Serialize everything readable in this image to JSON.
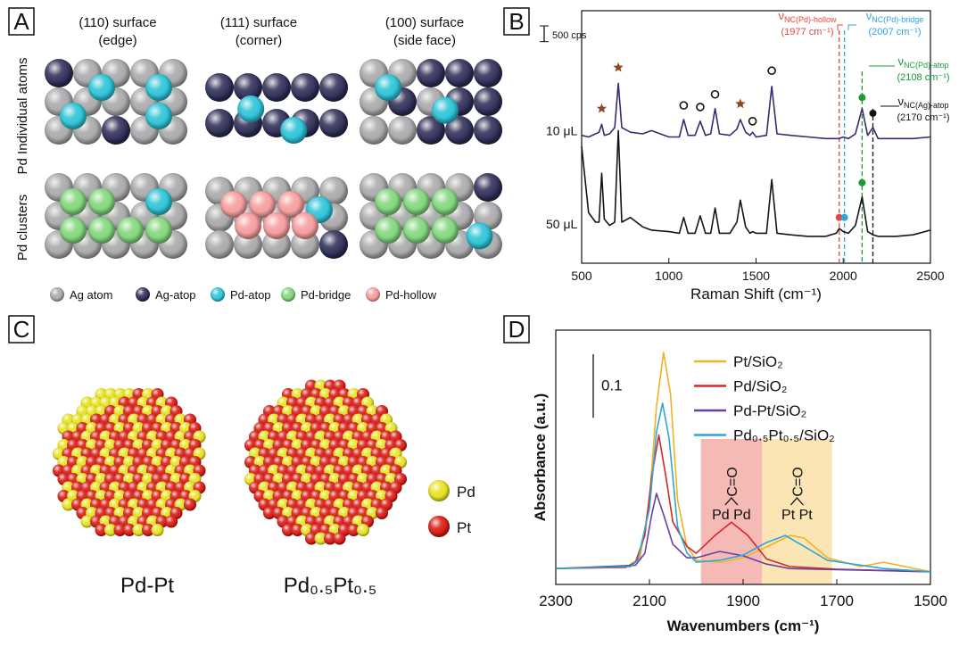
{
  "panel_a": {
    "letter": "A",
    "columns": [
      {
        "line1": "(110) surface",
        "line2": "(edge)"
      },
      {
        "line1": "(111) surface",
        "line2": "(corner)"
      },
      {
        "line1": "(100) surface",
        "line2": "(side face)"
      }
    ],
    "rows": [
      "Pd Individual atoms",
      "Pd clusters"
    ],
    "legend": [
      {
        "label": "Ag atom",
        "color": "#a7a7a9"
      },
      {
        "label": "Ag-atop",
        "color": "#2b2b55"
      },
      {
        "label": "Pd-atop",
        "color": "#27c2d6"
      },
      {
        "label": "Pd-bridge",
        "color": "#7fd67a"
      },
      {
        "label": "Pd-hollow",
        "color": "#f59a9a"
      }
    ]
  },
  "panel_c": {
    "letter": "C",
    "clusters": [
      "Pd-Pt",
      "Pd₀.₅Pt₀.₅"
    ],
    "legend": [
      {
        "label": "Pd",
        "color": "#e6e21a"
      },
      {
        "label": "Pt",
        "color": "#d8160f"
      }
    ]
  },
  "chart_data": [
    {
      "type": "line",
      "letter": "B",
      "xlabel": "Raman Shift (cm⁻¹)",
      "xlim": [
        500,
        2500
      ],
      "xticks": [
        500,
        1000,
        1500,
        2000,
        2500
      ],
      "ylim": [
        0,
        8000
      ],
      "scale_bar": {
        "value": 500,
        "label": "500 cps"
      },
      "x": [
        500,
        540,
        580,
        600,
        615,
        630,
        660,
        690,
        710,
        730,
        780,
        850,
        900,
        1000,
        1060,
        1085,
        1110,
        1150,
        1180,
        1210,
        1240,
        1265,
        1290,
        1350,
        1390,
        1410,
        1440,
        1465,
        1480,
        1500,
        1560,
        1590,
        1620,
        1700,
        1800,
        1900,
        1960,
        1977,
        2000,
        2030,
        2070,
        2108,
        2140,
        2170,
        2200,
        2300,
        2400,
        2500
      ],
      "series": [
        {
          "name": "10 μL",
          "color": "#3d2a6e",
          "values": [
            4050,
            4000,
            4100,
            4150,
            4400,
            4050,
            4100,
            4300,
            5700,
            4300,
            4150,
            4100,
            4200,
            4000,
            4000,
            4550,
            4050,
            4050,
            4500,
            4050,
            4100,
            4900,
            4100,
            4050,
            4250,
            4550,
            4150,
            4050,
            4150,
            4000,
            4050,
            5600,
            4100,
            4050,
            4000,
            3950,
            3950,
            3950,
            4000,
            3950,
            4100,
            4900,
            4050,
            4300,
            3950,
            3950,
            3950,
            4000
          ]
        },
        {
          "name": "50 μL",
          "color": "#151515",
          "values": [
            3700,
            1600,
            1300,
            1300,
            2850,
            1400,
            1200,
            1300,
            4200,
            1300,
            1450,
            1150,
            1050,
            1000,
            950,
            1450,
            950,
            950,
            1500,
            950,
            950,
            1750,
            950,
            950,
            1300,
            2000,
            1150,
            950,
            1000,
            950,
            950,
            2650,
            950,
            900,
            850,
            850,
            950,
            1100,
            1000,
            950,
            1200,
            2100,
            1000,
            900,
            850,
            850,
            900,
            1050
          ]
        }
      ],
      "markers": [
        {
          "x": 615,
          "y": 4900,
          "shape": "star",
          "color": "#8b4a1e"
        },
        {
          "x": 710,
          "y": 6200,
          "shape": "star",
          "color": "#8b4a1e"
        },
        {
          "x": 1410,
          "y": 5050,
          "shape": "star",
          "color": "#8b4a1e"
        },
        {
          "x": 1085,
          "y": 5000,
          "shape": "ring",
          "color": "#111111"
        },
        {
          "x": 1180,
          "y": 4950,
          "shape": "ring",
          "color": "#111111"
        },
        {
          "x": 1265,
          "y": 5350,
          "shape": "ring",
          "color": "#111111"
        },
        {
          "x": 1480,
          "y": 4500,
          "shape": "ring",
          "color": "#111111"
        },
        {
          "x": 1590,
          "y": 6100,
          "shape": "ring",
          "color": "#111111"
        },
        {
          "x": 1977,
          "y": 1450,
          "shape": "dot",
          "color": "#e8453c"
        },
        {
          "x": 2007,
          "y": 1450,
          "shape": "dot",
          "color": "#2ea6d8"
        },
        {
          "x": 2108,
          "y": 2550,
          "shape": "dot",
          "color": "#1a9a3a"
        },
        {
          "x": 2108,
          "y": 5250,
          "shape": "dot",
          "color": "#1a9a3a"
        },
        {
          "x": 2170,
          "y": 4750,
          "shape": "dot",
          "color": "#111111"
        }
      ],
      "peaks": [
        {
          "x": 1977,
          "symbol": "ν",
          "sub": "NC(Pd)-hollow",
          "label": "(1977 cm⁻¹)",
          "color": "#e8453c"
        },
        {
          "x": 2007,
          "symbol": "ν",
          "sub": "NC(Pd)-bridge",
          "label": "(2007 cm⁻¹)",
          "color": "#2ea6d8"
        },
        {
          "x": 2108,
          "symbol": "ν",
          "sub": "NC(Pd)-atop",
          "label": "(2108 cm⁻¹)",
          "color": "#1a9a3a"
        },
        {
          "x": 2170,
          "symbol": "ν",
          "sub": "NC(Ag)-atop",
          "label": "(2170 cm⁻¹)",
          "color": "#111111"
        }
      ]
    },
    {
      "type": "line",
      "letter": "D",
      "xlabel": "Wavenumbers (cm⁻¹)",
      "ylabel": "Absorbance (a.u.)",
      "xlim": [
        2300,
        1500
      ],
      "xticks": [
        2300,
        2100,
        1900,
        1700,
        1500
      ],
      "ylim": [
        0,
        0.4
      ],
      "scale_bar": {
        "value": 0.1,
        "label": "0.1"
      },
      "series": [
        {
          "name": "Pt/SiO₂",
          "color": "#f0b323",
          "x": [
            2300,
            2150,
            2120,
            2100,
            2085,
            2070,
            2055,
            2040,
            2020,
            2000,
            1950,
            1900,
            1850,
            1800,
            1770,
            1720,
            1650,
            1600,
            1500
          ],
          "values": [
            0.025,
            0.027,
            0.042,
            0.133,
            0.28,
            0.365,
            0.3,
            0.133,
            0.06,
            0.038,
            0.035,
            0.042,
            0.059,
            0.077,
            0.073,
            0.042,
            0.028,
            0.035,
            0.02
          ]
        },
        {
          "name": "Pd/SiO₂",
          "color": "#d62728",
          "x": [
            2300,
            2150,
            2130,
            2110,
            2095,
            2080,
            2065,
            2050,
            2020,
            2000,
            1960,
            1925,
            1890,
            1850,
            1800,
            1700,
            1500
          ],
          "values": [
            0.025,
            0.027,
            0.035,
            0.077,
            0.17,
            0.235,
            0.17,
            0.098,
            0.06,
            0.049,
            0.077,
            0.098,
            0.077,
            0.04,
            0.028,
            0.024,
            0.02
          ]
        },
        {
          "name": "Pd-Pt/SiO₂",
          "color": "#6b3fa0",
          "x": [
            2300,
            2130,
            2110,
            2095,
            2085,
            2070,
            2050,
            2020,
            2000,
            1950,
            1900,
            1850,
            1800,
            1500
          ],
          "values": [
            0.025,
            0.03,
            0.049,
            0.11,
            0.143,
            0.11,
            0.063,
            0.042,
            0.042,
            0.052,
            0.045,
            0.032,
            0.025,
            0.02
          ]
        },
        {
          "name": "Pd₀.₅Pt₀.₅/SiO₂",
          "color": "#2ea6d8",
          "x": [
            2300,
            2140,
            2125,
            2100,
            2085,
            2072,
            2058,
            2040,
            2020,
            2000,
            1950,
            1900,
            1850,
            1810,
            1770,
            1720,
            1600,
            1500
          ],
          "values": [
            0.025,
            0.028,
            0.038,
            0.119,
            0.24,
            0.285,
            0.23,
            0.091,
            0.05,
            0.035,
            0.038,
            0.046,
            0.066,
            0.077,
            0.06,
            0.038,
            0.025,
            0.02
          ]
        }
      ],
      "regions": [
        {
          "x": [
            1990,
            1860
          ],
          "top": 0.229,
          "color": "#f5b9b6",
          "label": "Pd Pd",
          "carbonyl": "C=O"
        },
        {
          "x": [
            1860,
            1710
          ],
          "top": 0.229,
          "color": "#fbe5b4",
          "label": "Pt Pt",
          "carbonyl": "C=O"
        }
      ]
    }
  ]
}
